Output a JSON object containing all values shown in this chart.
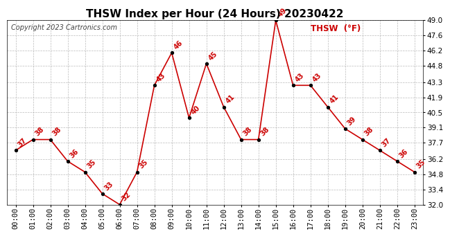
{
  "title": "THSW Index per Hour (24 Hours) 20230422",
  "copyright": "Copyright 2023 Cartronics.com",
  "legend_label": "THSW  (°F)",
  "hours": [
    "00:00",
    "01:00",
    "02:00",
    "03:00",
    "04:00",
    "05:00",
    "06:00",
    "07:00",
    "08:00",
    "09:00",
    "10:00",
    "11:00",
    "12:00",
    "13:00",
    "14:00",
    "15:00",
    "16:00",
    "17:00",
    "18:00",
    "19:00",
    "20:00",
    "21:00",
    "22:00",
    "23:00"
  ],
  "values": [
    37,
    38,
    38,
    36,
    35,
    33,
    32,
    35,
    43,
    46,
    40,
    45,
    41,
    38,
    38,
    49,
    43,
    43,
    41,
    39,
    38,
    37,
    36,
    35
  ],
  "ylim": [
    32.0,
    49.0
  ],
  "yticks": [
    32.0,
    33.4,
    34.8,
    36.2,
    37.7,
    39.1,
    40.5,
    41.9,
    43.3,
    44.8,
    46.2,
    47.6,
    49.0
  ],
  "line_color": "#cc0000",
  "marker_color": "#000000",
  "label_color": "#cc0000",
  "background_color": "#ffffff",
  "grid_color": "#aaaaaa",
  "title_fontsize": 11,
  "copyright_fontsize": 7,
  "legend_fontsize": 8.5,
  "label_fontsize": 7,
  "tick_fontsize": 7.5
}
